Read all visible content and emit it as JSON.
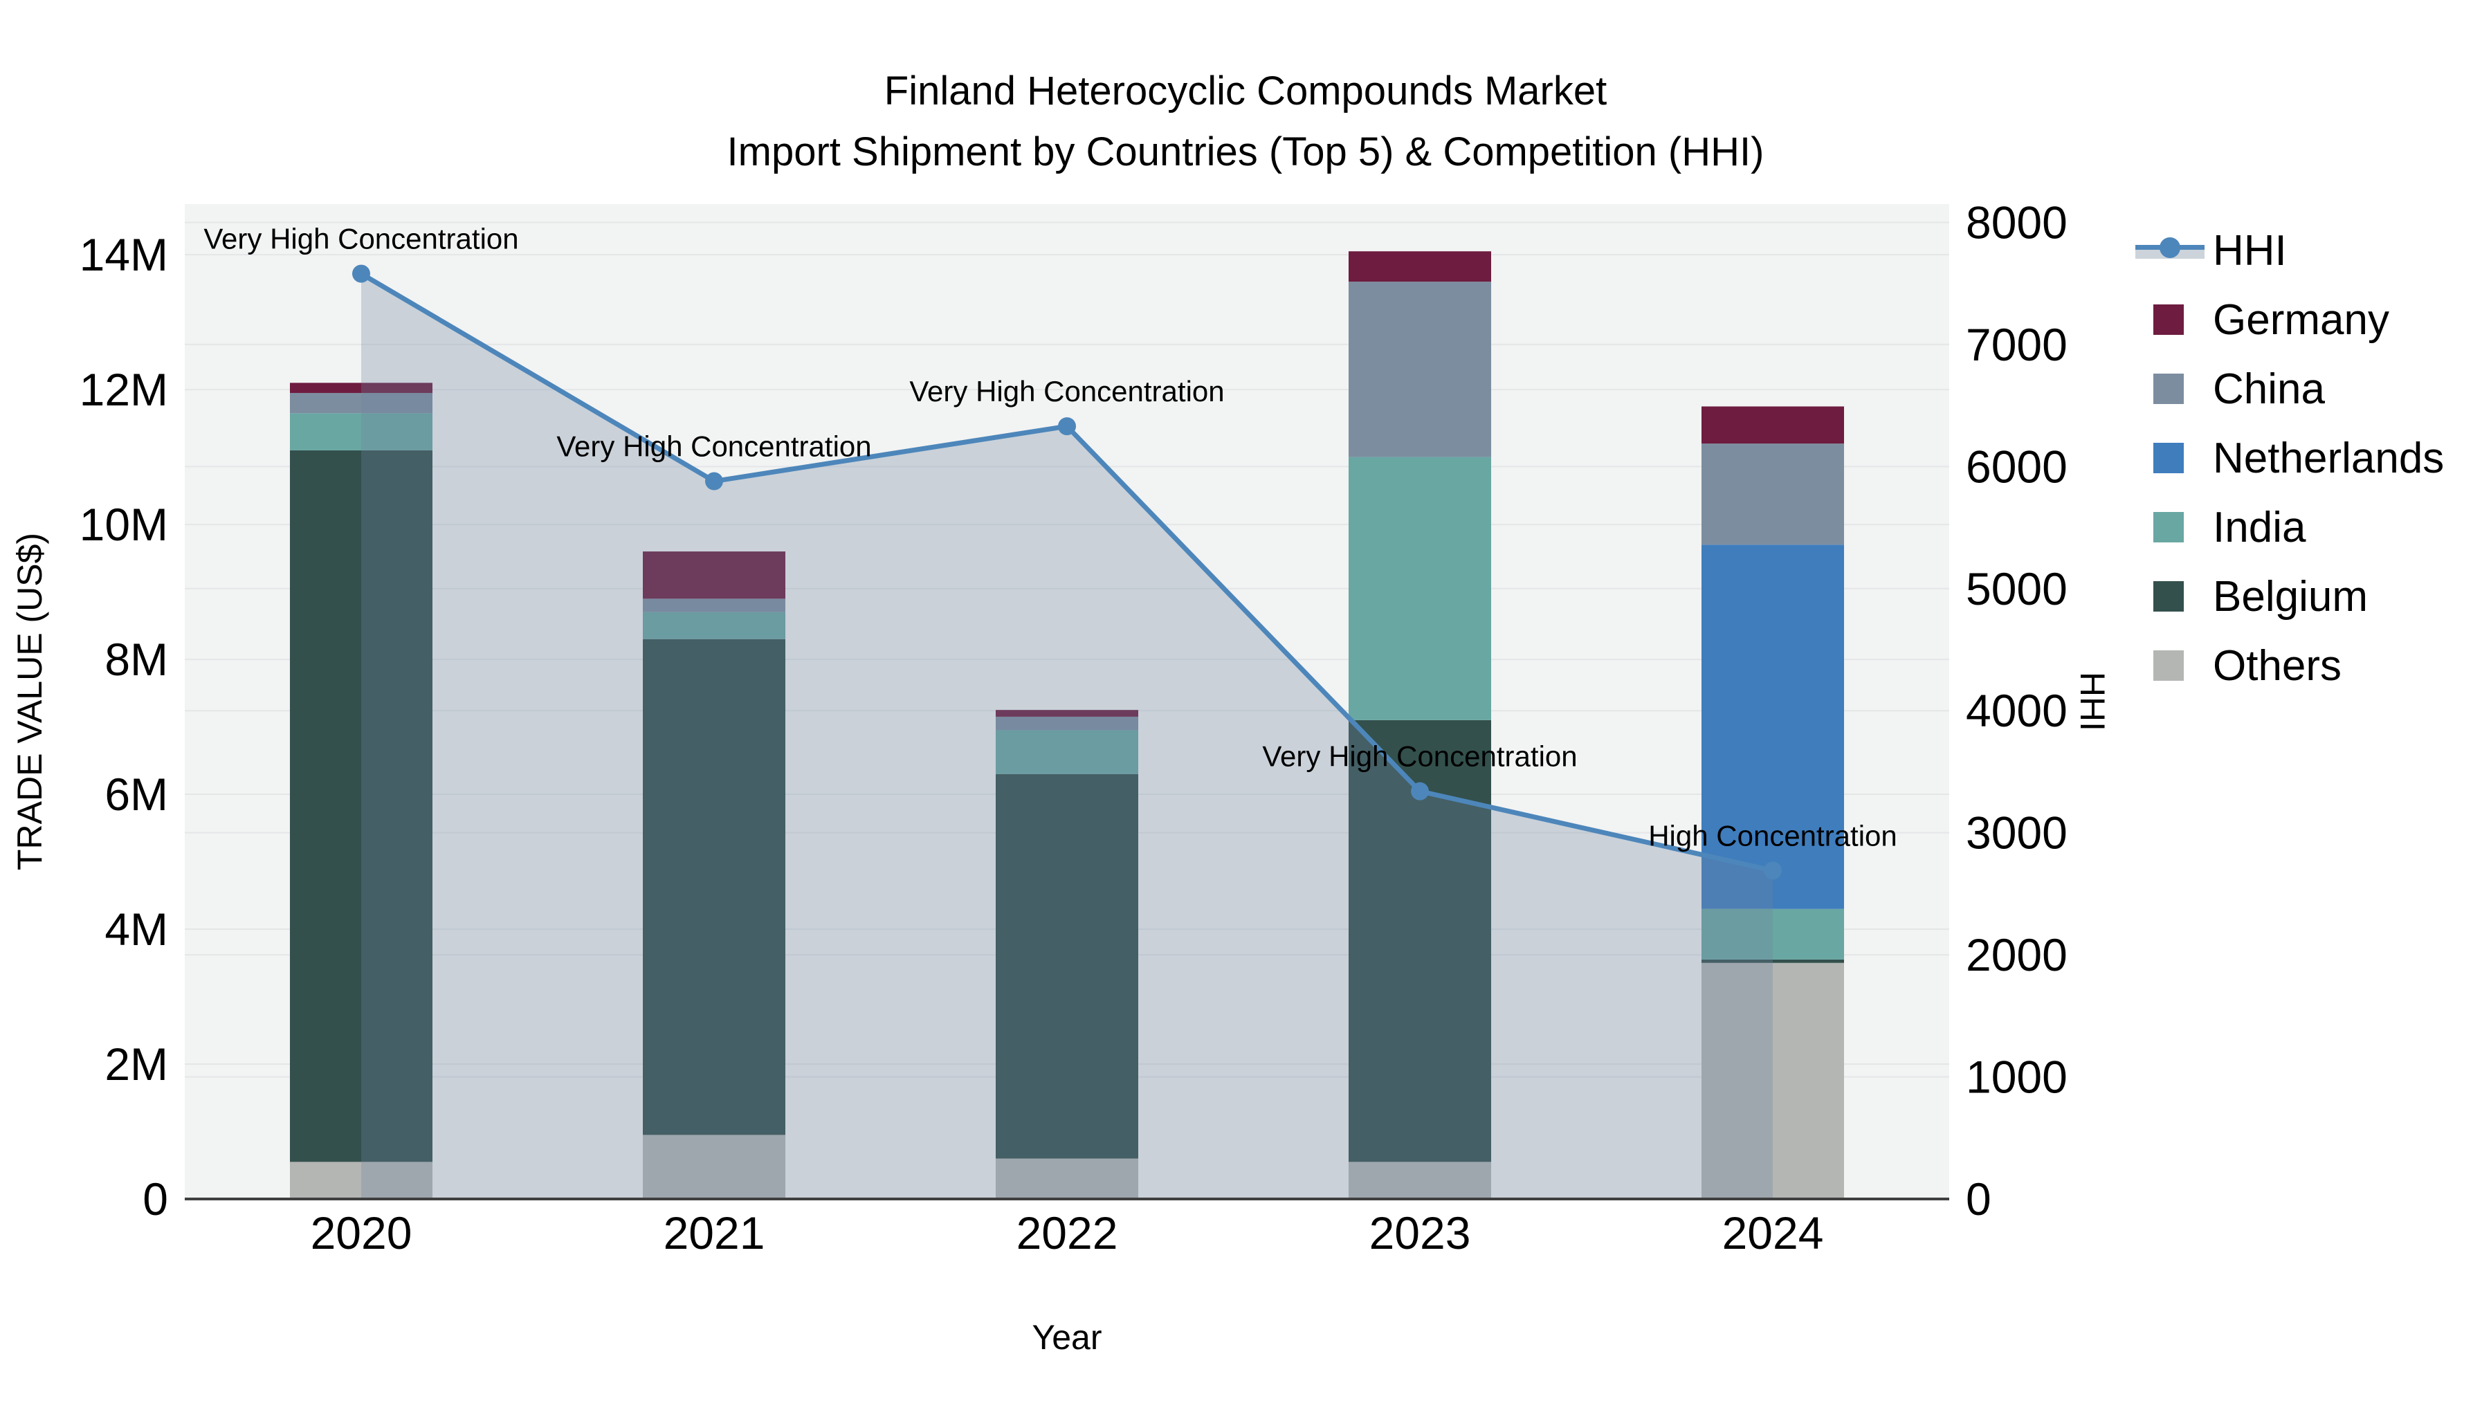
{
  "title": {
    "line1": "Finland Heterocyclic Compounds Market",
    "line2": "Import Shipment by Countries (Top 5) & Competition (HHI)"
  },
  "legend": {
    "items": [
      {
        "label": "HHI",
        "type": "line",
        "color": "#4d86ba",
        "band_color": "#ccd3db"
      },
      {
        "label": "Germany",
        "type": "swatch",
        "color": "#6e1c3f"
      },
      {
        "label": "China",
        "type": "swatch",
        "color": "#7d8da0"
      },
      {
        "label": "Netherlands",
        "type": "swatch",
        "color": "#3f7dbd"
      },
      {
        "label": "India",
        "type": "swatch",
        "color": "#69a7a3"
      },
      {
        "label": "Belgium",
        "type": "swatch",
        "color": "#33504c"
      },
      {
        "label": "Others",
        "type": "swatch",
        "color": "#b4b6b4"
      }
    ]
  },
  "chart_data": {
    "type": "bar+line",
    "title": "Finland Heterocyclic Compounds Market — Import Shipment by Countries (Top 5) & Competition (HHI)",
    "categories": [
      "2020",
      "2021",
      "2022",
      "2023",
      "2024"
    ],
    "bar_unit": "million US$",
    "bar_stack_order": "bottom to top",
    "bar_series": [
      {
        "name": "Others",
        "color": "#b4b6b4",
        "values": [
          0.55,
          0.95,
          0.6,
          0.55,
          3.5
        ]
      },
      {
        "name": "Belgium",
        "color": "#33504c",
        "values": [
          10.55,
          7.35,
          5.7,
          6.55,
          0.05
        ]
      },
      {
        "name": "India",
        "color": "#69a7a3",
        "values": [
          0.55,
          0.4,
          0.65,
          3.9,
          0.75
        ]
      },
      {
        "name": "Netherlands",
        "color": "#3f7dbd",
        "values": [
          0,
          0,
          0,
          0,
          5.4
        ]
      },
      {
        "name": "China",
        "color": "#7d8da0",
        "values": [
          0.3,
          0.2,
          0.2,
          2.6,
          1.5
        ]
      },
      {
        "name": "Germany",
        "color": "#6e1c3f",
        "values": [
          0.15,
          0.7,
          0.1,
          0.45,
          0.55
        ]
      }
    ],
    "bar_totals": [
      12.1,
      9.6,
      7.25,
      14.05,
      11.75
    ],
    "line_series": {
      "name": "HHI",
      "color": "#4d86ba",
      "fill_color": "rgba(110,132,160,0.30)",
      "values": [
        7580,
        5880,
        6330,
        3340,
        2690
      ]
    },
    "annotations": [
      "Very High Concentration",
      "Very High Concentration",
      "Very High Concentration",
      "Very High Concentration",
      "High Concentration"
    ],
    "left_axis": {
      "title": "TRADE VALUE (US$)",
      "tick_labels": [
        "0",
        "2M",
        "4M",
        "6M",
        "8M",
        "10M",
        "12M",
        "14M"
      ],
      "tick_values": [
        0,
        2,
        4,
        6,
        8,
        10,
        12,
        14
      ],
      "max": 14.75
    },
    "right_axis": {
      "title": "HHI",
      "tick_labels": [
        "0",
        "1000",
        "2000",
        "3000",
        "4000",
        "5000",
        "6000",
        "7000",
        "8000"
      ],
      "tick_values": [
        0,
        1000,
        2000,
        3000,
        4000,
        5000,
        6000,
        7000,
        8000
      ],
      "max": 8150
    },
    "x_axis": {
      "title": "Year"
    },
    "plot_bg": "#f2f3f3",
    "grid_color": "#e4e6e7",
    "axis_line_color": "#3f3f3f",
    "grid_on": true,
    "legend_position": "right"
  }
}
